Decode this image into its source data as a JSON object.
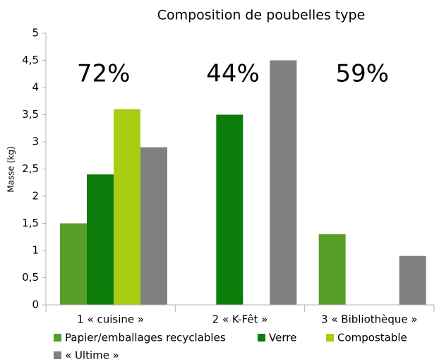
{
  "chart_data": {
    "type": "bar",
    "title": "Composition de poubelles type",
    "y_label": "Masse (kg)",
    "categories": [
      "1 « cuisine »",
      "2 « K-Fêt »",
      "3 « Bibliothèque »"
    ],
    "series": [
      {
        "name": "Papier/emballages recyclables",
        "color": "#5a9e2a",
        "values": [
          1.5,
          0,
          1.3
        ]
      },
      {
        "name": "Verre",
        "color": "#0b7d0b",
        "values": [
          2.4,
          3.5,
          0
        ]
      },
      {
        "name": "Compostable",
        "color": "#a9cc12",
        "values": [
          3.6,
          0,
          0
        ]
      },
      {
        "name": "« Ultime »",
        "color": "#808080",
        "values": [
          2.9,
          4.5,
          0.9
        ]
      }
    ],
    "annotations": [
      "72%",
      "44%",
      "59%"
    ],
    "ylim": [
      0,
      5
    ],
    "yticks": [
      0,
      {
        "value": 0.5,
        "label": "0,5"
      },
      1,
      {
        "value": 1.5,
        "label": "1,5"
      },
      2,
      {
        "value": 2.5,
        "label": "2,5"
      },
      3,
      {
        "value": 3.5,
        "label": "3,5"
      },
      4,
      {
        "value": 4.5,
        "label": "4,5"
      },
      5
    ],
    "grid": false,
    "legend": "bottom"
  }
}
